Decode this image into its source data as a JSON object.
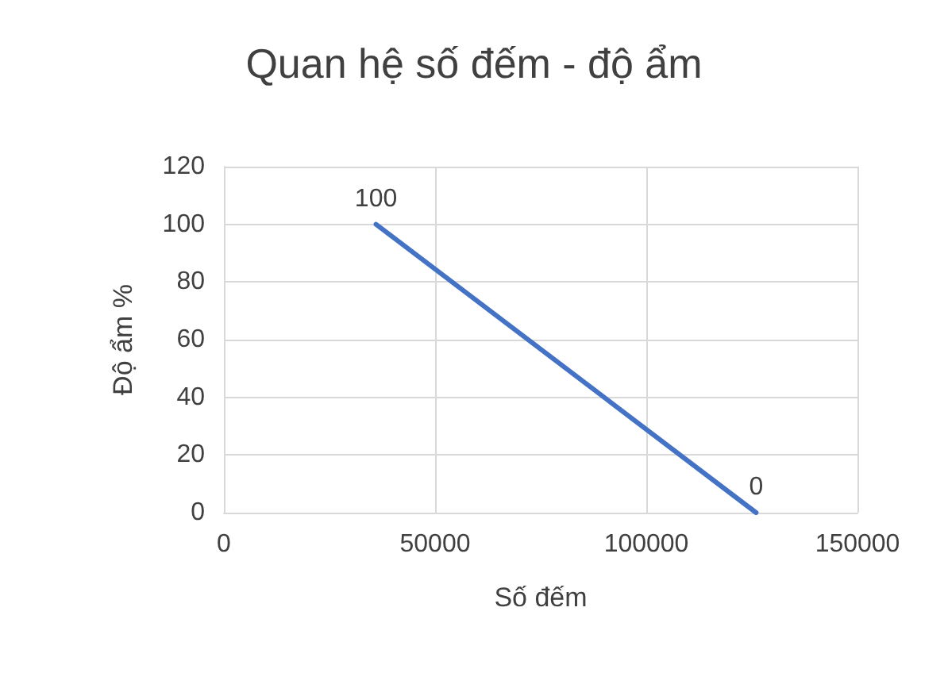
{
  "chart_data": {
    "type": "line",
    "title": "Quan hệ số đếm - độ ẩm",
    "xlabel": "Số đếm",
    "ylabel": "Độ ẩm %",
    "x": [
      36000,
      126000
    ],
    "series": [
      {
        "color": "#4472c4",
        "values": [
          100,
          0
        ]
      }
    ],
    "xlim": [
      0,
      150000
    ],
    "xticks": [
      0,
      50000,
      100000,
      150000
    ],
    "ylim": [
      0,
      120
    ],
    "yticks": [
      0,
      20,
      40,
      60,
      80,
      100,
      120
    ],
    "grid": true,
    "data_labels": true,
    "marker": "none",
    "line_style": "solid"
  }
}
